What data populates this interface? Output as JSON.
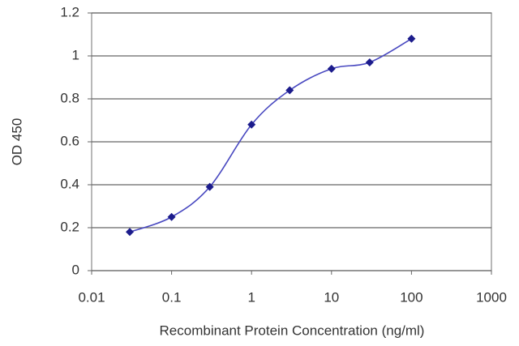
{
  "chart_data": {
    "type": "line",
    "xlabel": "Recombinant Protein Concentration (ng/ml)",
    "ylabel": "OD 450",
    "x": [
      0.03,
      0.1,
      0.3,
      1,
      3,
      10,
      30,
      100
    ],
    "values": [
      0.18,
      0.25,
      0.39,
      0.68,
      0.84,
      0.94,
      0.97,
      1.08
    ],
    "color": "#4848c0",
    "marker_color": "#1c1c8c",
    "xscale": "log",
    "xlim": [
      0.01,
      1000
    ],
    "xticks": [
      0.01,
      0.1,
      1,
      10,
      100,
      1000
    ],
    "ylim": [
      0,
      1.2
    ],
    "yticks": [
      0,
      0.2,
      0.4,
      0.6,
      0.8,
      1,
      1.2
    ],
    "grid": true
  }
}
